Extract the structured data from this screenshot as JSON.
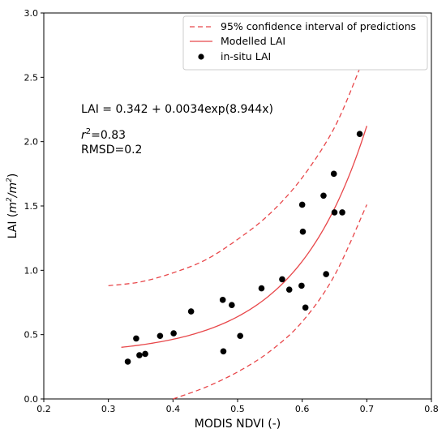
{
  "chart_data": {
    "type": "scatter",
    "xlabel": "MODIS NDVI (-)",
    "ylabel": {
      "main": "LAI (",
      "unit1": "m",
      "sup1": "2",
      "slash": "/",
      "unit2": "m",
      "sup2": "2",
      "close": ")"
    },
    "xlim": [
      0.2,
      0.8
    ],
    "ylim": [
      0.0,
      3.0
    ],
    "xticks": [
      "0.2",
      "0.3",
      "0.4",
      "0.5",
      "0.6",
      "0.7",
      "0.8"
    ],
    "yticks": [
      "0.0",
      "0.5",
      "1.0",
      "1.5",
      "2.0",
      "2.5",
      "3.0"
    ],
    "grid": false,
    "legend_position": "top-right",
    "legend": [
      {
        "label": "95% confidence interval of predictions",
        "style": "dashed-line"
      },
      {
        "label": "Modelled LAI",
        "style": "line"
      },
      {
        "label": "in-situ LAI",
        "style": "marker"
      }
    ],
    "annotations": {
      "equation": "LAI = 0.342 + 0.0034exp(8.944x)",
      "r2_symbol": "r",
      "r2_sup": "2",
      "r2_value": "=0.83",
      "rmsd": "RMSD=0.2"
    },
    "colors": {
      "model": "#e8474a",
      "points": "#000000"
    },
    "model": {
      "a": 0.342,
      "b": 0.0034,
      "c": 8.944,
      "x_range": [
        0.32,
        0.7
      ]
    },
    "confidence_upper": [
      [
        0.3,
        0.88
      ],
      [
        0.35,
        0.91
      ],
      [
        0.4,
        0.98
      ],
      [
        0.45,
        1.08
      ],
      [
        0.5,
        1.24
      ],
      [
        0.55,
        1.44
      ],
      [
        0.6,
        1.72
      ],
      [
        0.65,
        2.11
      ],
      [
        0.69,
        2.58
      ],
      [
        0.7,
        2.71
      ]
    ],
    "confidence_lower": [
      [
        0.4,
        0.0
      ],
      [
        0.45,
        0.09
      ],
      [
        0.5,
        0.21
      ],
      [
        0.55,
        0.37
      ],
      [
        0.6,
        0.6
      ],
      [
        0.65,
        0.96
      ],
      [
        0.7,
        1.51
      ]
    ],
    "points": [
      [
        0.33,
        0.29
      ],
      [
        0.343,
        0.47
      ],
      [
        0.348,
        0.34
      ],
      [
        0.357,
        0.35
      ],
      [
        0.38,
        0.49
      ],
      [
        0.401,
        0.51
      ],
      [
        0.428,
        0.68
      ],
      [
        0.477,
        0.77
      ],
      [
        0.478,
        0.37
      ],
      [
        0.491,
        0.73
      ],
      [
        0.504,
        0.49
      ],
      [
        0.537,
        0.86
      ],
      [
        0.569,
        0.93
      ],
      [
        0.58,
        0.85
      ],
      [
        0.599,
        0.88
      ],
      [
        0.6,
        1.51
      ],
      [
        0.601,
        1.3
      ],
      [
        0.605,
        0.71
      ],
      [
        0.633,
        1.58
      ],
      [
        0.637,
        0.97
      ],
      [
        0.649,
        1.75
      ],
      [
        0.65,
        1.45
      ],
      [
        0.662,
        1.45
      ],
      [
        0.689,
        2.06
      ]
    ]
  }
}
